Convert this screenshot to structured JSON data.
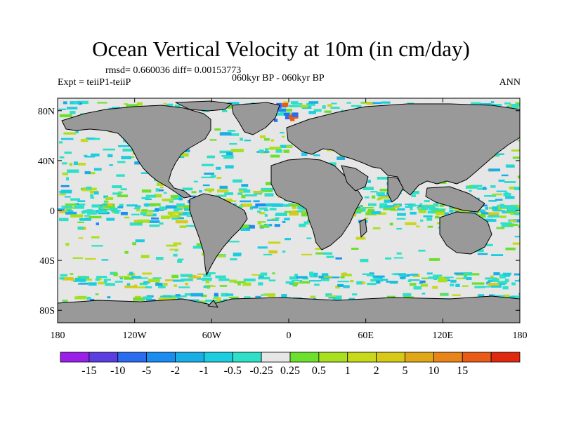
{
  "title": "Ocean Vertical Velocity at 10m (in cm/day)",
  "stats_line": "rmsd= 0.660036 diff= 0.00153773",
  "experiment_line": "Expt = teiiP1-teiiP",
  "period_line": "060kyr BP - 060kyr BP",
  "season": "ANN",
  "map": {
    "projection": "cylindrical equidistant",
    "lon_range": [
      -180,
      180
    ],
    "lat_range": [
      -90,
      90
    ],
    "land_color": "#999999",
    "ocean_background_color": "#e6e6e6",
    "coastline_color": "#000000",
    "lat_ticks": [
      {
        "value": 80,
        "label": "80N"
      },
      {
        "value": 40,
        "label": "40N"
      },
      {
        "value": 0,
        "label": "0"
      },
      {
        "value": -40,
        "label": "40S"
      },
      {
        "value": -80,
        "label": "80S"
      }
    ],
    "lon_ticks": [
      {
        "value": -180,
        "label": "180"
      },
      {
        "value": -120,
        "label": "120W"
      },
      {
        "value": -60,
        "label": "60W"
      },
      {
        "value": 0,
        "label": "0"
      },
      {
        "value": 60,
        "label": "60E"
      },
      {
        "value": 120,
        "label": "120E"
      },
      {
        "value": 180,
        "label": "180"
      }
    ]
  },
  "colorbar": {
    "colors": [
      "#9a1fe8",
      "#5a3ee0",
      "#2a6cf0",
      "#1a8ef0",
      "#19aee6",
      "#1ccde0",
      "#2ee0c8",
      "#e6e6e6",
      "#6de02e",
      "#a8e020",
      "#c8d81a",
      "#d8c818",
      "#e0a818",
      "#e88418",
      "#e85c18",
      "#e02a10"
    ],
    "labels": [
      "-15",
      "-10",
      "-5",
      "-2",
      "-1",
      "-0.5",
      "-0.25",
      "0.25",
      "0.5",
      "1",
      "2",
      "5",
      "10",
      "15"
    ]
  }
}
